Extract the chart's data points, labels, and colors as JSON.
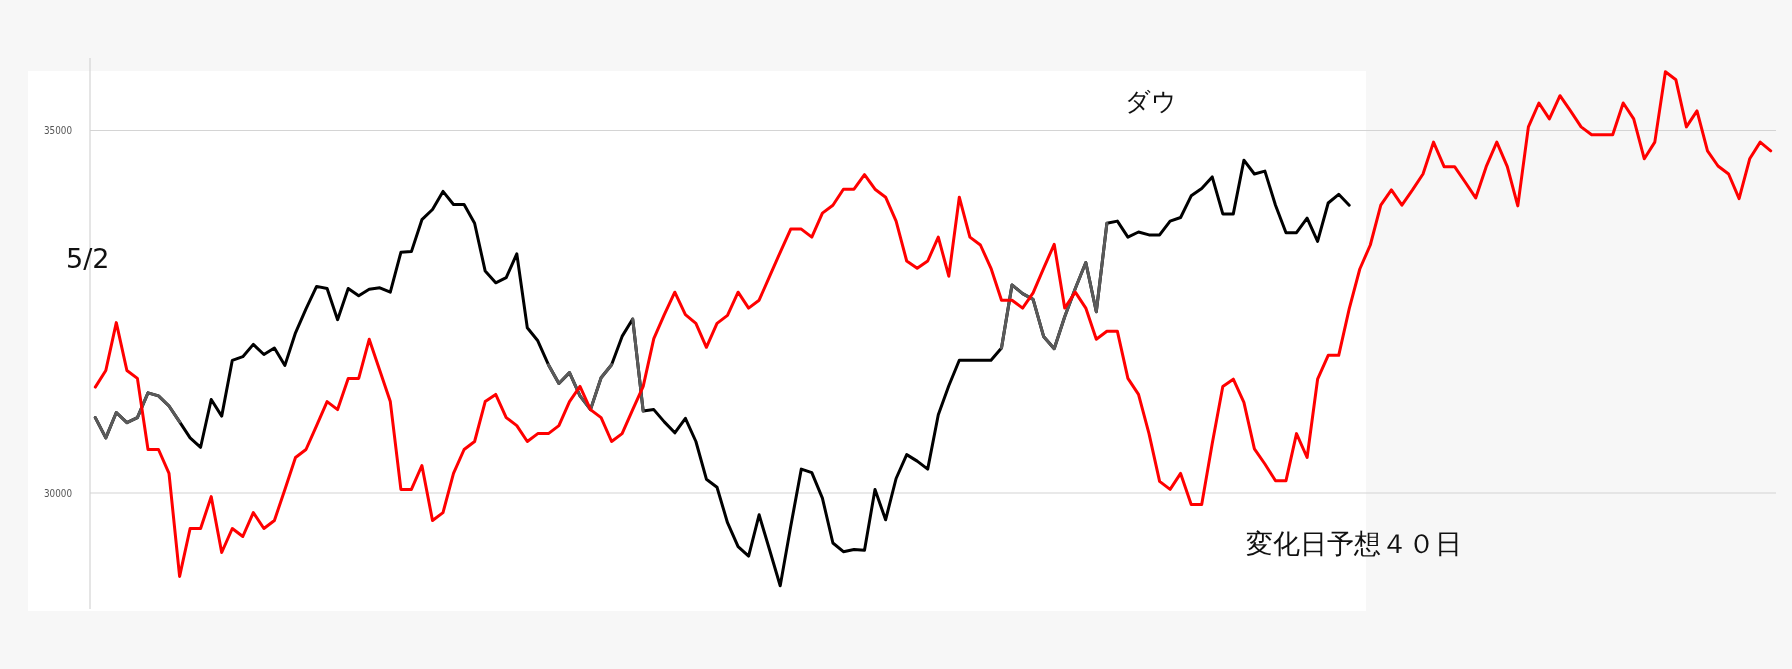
{
  "chart_data": {
    "type": "line",
    "categories": [
      null,
      null,
      null,
      null,
      null,
      null,
      null,
      null,
      null,
      null,
      null,
      null,
      null,
      null,
      null,
      null,
      null,
      null,
      null,
      null,
      null,
      null,
      null,
      null,
      null,
      null,
      null,
      null,
      null,
      null,
      null,
      null,
      null,
      null,
      null,
      null,
      null,
      null,
      null,
      null,
      null,
      null,
      null,
      null,
      null,
      null,
      null,
      null,
      null,
      null,
      null,
      null,
      null,
      null,
      null,
      null,
      null,
      null,
      null,
      null,
      null,
      null,
      null,
      null,
      null,
      null,
      null,
      null,
      null,
      null,
      null,
      null,
      null,
      null,
      null,
      null,
      null,
      null,
      null,
      null,
      null,
      null,
      null,
      null,
      null,
      null,
      null,
      null,
      null,
      null,
      null,
      null,
      null,
      null,
      null,
      null,
      null,
      null,
      null,
      null,
      null,
      null,
      null,
      null,
      null,
      null,
      null,
      null,
      null,
      null,
      null,
      null,
      null,
      null,
      null,
      null,
      null,
      null,
      null,
      null,
      null,
      null,
      null,
      null,
      null,
      null,
      null,
      null,
      null,
      null,
      null,
      null,
      null,
      null,
      null,
      null,
      null,
      null,
      null,
      null,
      null,
      null,
      null,
      null,
      null,
      null,
      null,
      null,
      null,
      null,
      null,
      null,
      null,
      null,
      null,
      null,
      null,
      null,
      null,
      null
    ],
    "series": [
      {
        "color": "#000000",
        "values": [
          31040,
          30760,
          31110,
          30970,
          31040,
          31380,
          31340,
          31200,
          30980,
          30760,
          30630,
          31290,
          31060,
          31830,
          31880,
          32050,
          31910,
          32000,
          31760,
          32210,
          32540,
          32850,
          32820,
          32390,
          32820,
          32720,
          32810,
          32830,
          32770,
          33320,
          33330,
          33770,
          33910,
          34160,
          33980,
          33980,
          33720,
          33060,
          32900,
          32970,
          33300,
          32280,
          32100,
          31770,
          31510,
          31660,
          31340,
          31150,
          31590,
          31770,
          32160,
          32400,
          31130,
          31150,
          30980,
          30830,
          31030,
          30710,
          30190,
          30080,
          29590,
          29260,
          29130,
          29700,
          29210,
          28720,
          29540,
          30330,
          30280,
          29930,
          29310,
          29190,
          29220,
          29210,
          30050,
          29630,
          30200,
          30530,
          30440,
          30330,
          31080,
          31480,
          31830,
          31830,
          31830,
          31830,
          32000,
          32870,
          32750,
          32670,
          32160,
          31990,
          32430,
          32820,
          33180,
          32500,
          33720,
          33750,
          33530,
          33600,
          33560,
          33560,
          33750,
          33800,
          34100,
          34200,
          34360,
          33850,
          33850,
          34590,
          34400,
          34440,
          33970,
          33590,
          33590,
          33790,
          33470,
          34000,
          34120,
          33970,
          null,
          null,
          null,
          null,
          null,
          null,
          null,
          null,
          null,
          null,
          null,
          null,
          null,
          null,
          null,
          null,
          null,
          null,
          null,
          null,
          null,
          null,
          null,
          null,
          null,
          null,
          null,
          null,
          null,
          null,
          null,
          null,
          null,
          null,
          null,
          null,
          null,
          null,
          null,
          null
        ]
      },
      {
        "color": "#5a5a5a",
        "values": [
          31040,
          30760,
          31110,
          30970,
          31040,
          31380,
          31340,
          31200,
          30980,
          null,
          null,
          null,
          null,
          null,
          null,
          null,
          null,
          null,
          null,
          null,
          null,
          null,
          null,
          null,
          null,
          null,
          null,
          null,
          null,
          null,
          null,
          null,
          null,
          null,
          null,
          null,
          null,
          null,
          null,
          null,
          null,
          null,
          null,
          31770,
          31510,
          31660,
          31340,
          31150,
          31590,
          31770,
          null,
          32400,
          31130,
          null,
          null,
          null,
          null,
          null,
          null,
          null,
          null,
          null,
          null,
          null,
          null,
          null,
          null,
          null,
          null,
          null,
          null,
          null,
          null,
          null,
          null,
          null,
          null,
          null,
          null,
          null,
          null,
          null,
          null,
          null,
          null,
          null,
          32000,
          32870,
          32750,
          32670,
          32160,
          31990,
          32430,
          32820,
          33180,
          32500,
          33720,
          null,
          null,
          null,
          null,
          null,
          null,
          null,
          null,
          null,
          null,
          null,
          null,
          null,
          null,
          null,
          null,
          null,
          null,
          null,
          null,
          null,
          null,
          null,
          null,
          null,
          null,
          null,
          null,
          null,
          null,
          null,
          null,
          null,
          null,
          null,
          null,
          null,
          null,
          null,
          null,
          null,
          null,
          null,
          null,
          null,
          null,
          null,
          null,
          null,
          null,
          null,
          null,
          null,
          null,
          null,
          null,
          null,
          null,
          null,
          null,
          null,
          null,
          null
        ]
      },
      {
        "color": "#ff0000",
        "values": [
          31460,
          31690,
          32350,
          31690,
          31580,
          30600,
          30600,
          30270,
          28850,
          29510,
          29510,
          29950,
          29180,
          29510,
          29400,
          29730,
          29510,
          29620,
          30050,
          30490,
          30600,
          30930,
          31260,
          31150,
          31580,
          31580,
          32120,
          31690,
          31260,
          30050,
          30050,
          30380,
          29620,
          29730,
          30270,
          30600,
          30710,
          31260,
          31360,
          31040,
          30930,
          30710,
          30820,
          30820,
          30930,
          31260,
          31470,
          31150,
          31040,
          30710,
          30820,
          31150,
          31470,
          32130,
          32460,
          32770,
          32460,
          32340,
          32010,
          32340,
          32450,
          32770,
          32550,
          32660,
          32990,
          33320,
          33640,
          33640,
          33530,
          33860,
          33970,
          34190,
          34190,
          34390,
          34190,
          34080,
          33750,
          33200,
          33100,
          33200,
          33530,
          32990,
          34080,
          33530,
          33420,
          33100,
          32660,
          32660,
          32550,
          32760,
          33100,
          33430,
          32550,
          32770,
          32550,
          32120,
          32230,
          32230,
          31580,
          31360,
          30820,
          30160,
          30050,
          30270,
          29840,
          29840,
          30680,
          31470,
          31570,
          31250,
          30610,
          30400,
          30170,
          30170,
          30820,
          30490,
          31570,
          31900,
          31900,
          32540,
          33090,
          33420,
          33970,
          34180,
          33970,
          34180,
          34400,
          34840,
          34500,
          34500,
          34290,
          34070,
          34500,
          34840,
          34500,
          33960,
          35050,
          35380,
          35160,
          35480,
          35270,
          35050,
          34940,
          34940,
          34940,
          35380,
          35160,
          34610,
          34840,
          35810,
          35700,
          35050,
          35270,
          34720,
          34510,
          34400,
          34060,
          34610,
          34840,
          34720
        ]
      }
    ],
    "ylim": [
      28400,
      36000
    ],
    "yticks": [
      30000,
      35000
    ],
    "grid": "y",
    "tick_labels": "y",
    "annotations": [
      "5/2",
      "ダウ",
      "変化日予想４０日"
    ]
  }
}
